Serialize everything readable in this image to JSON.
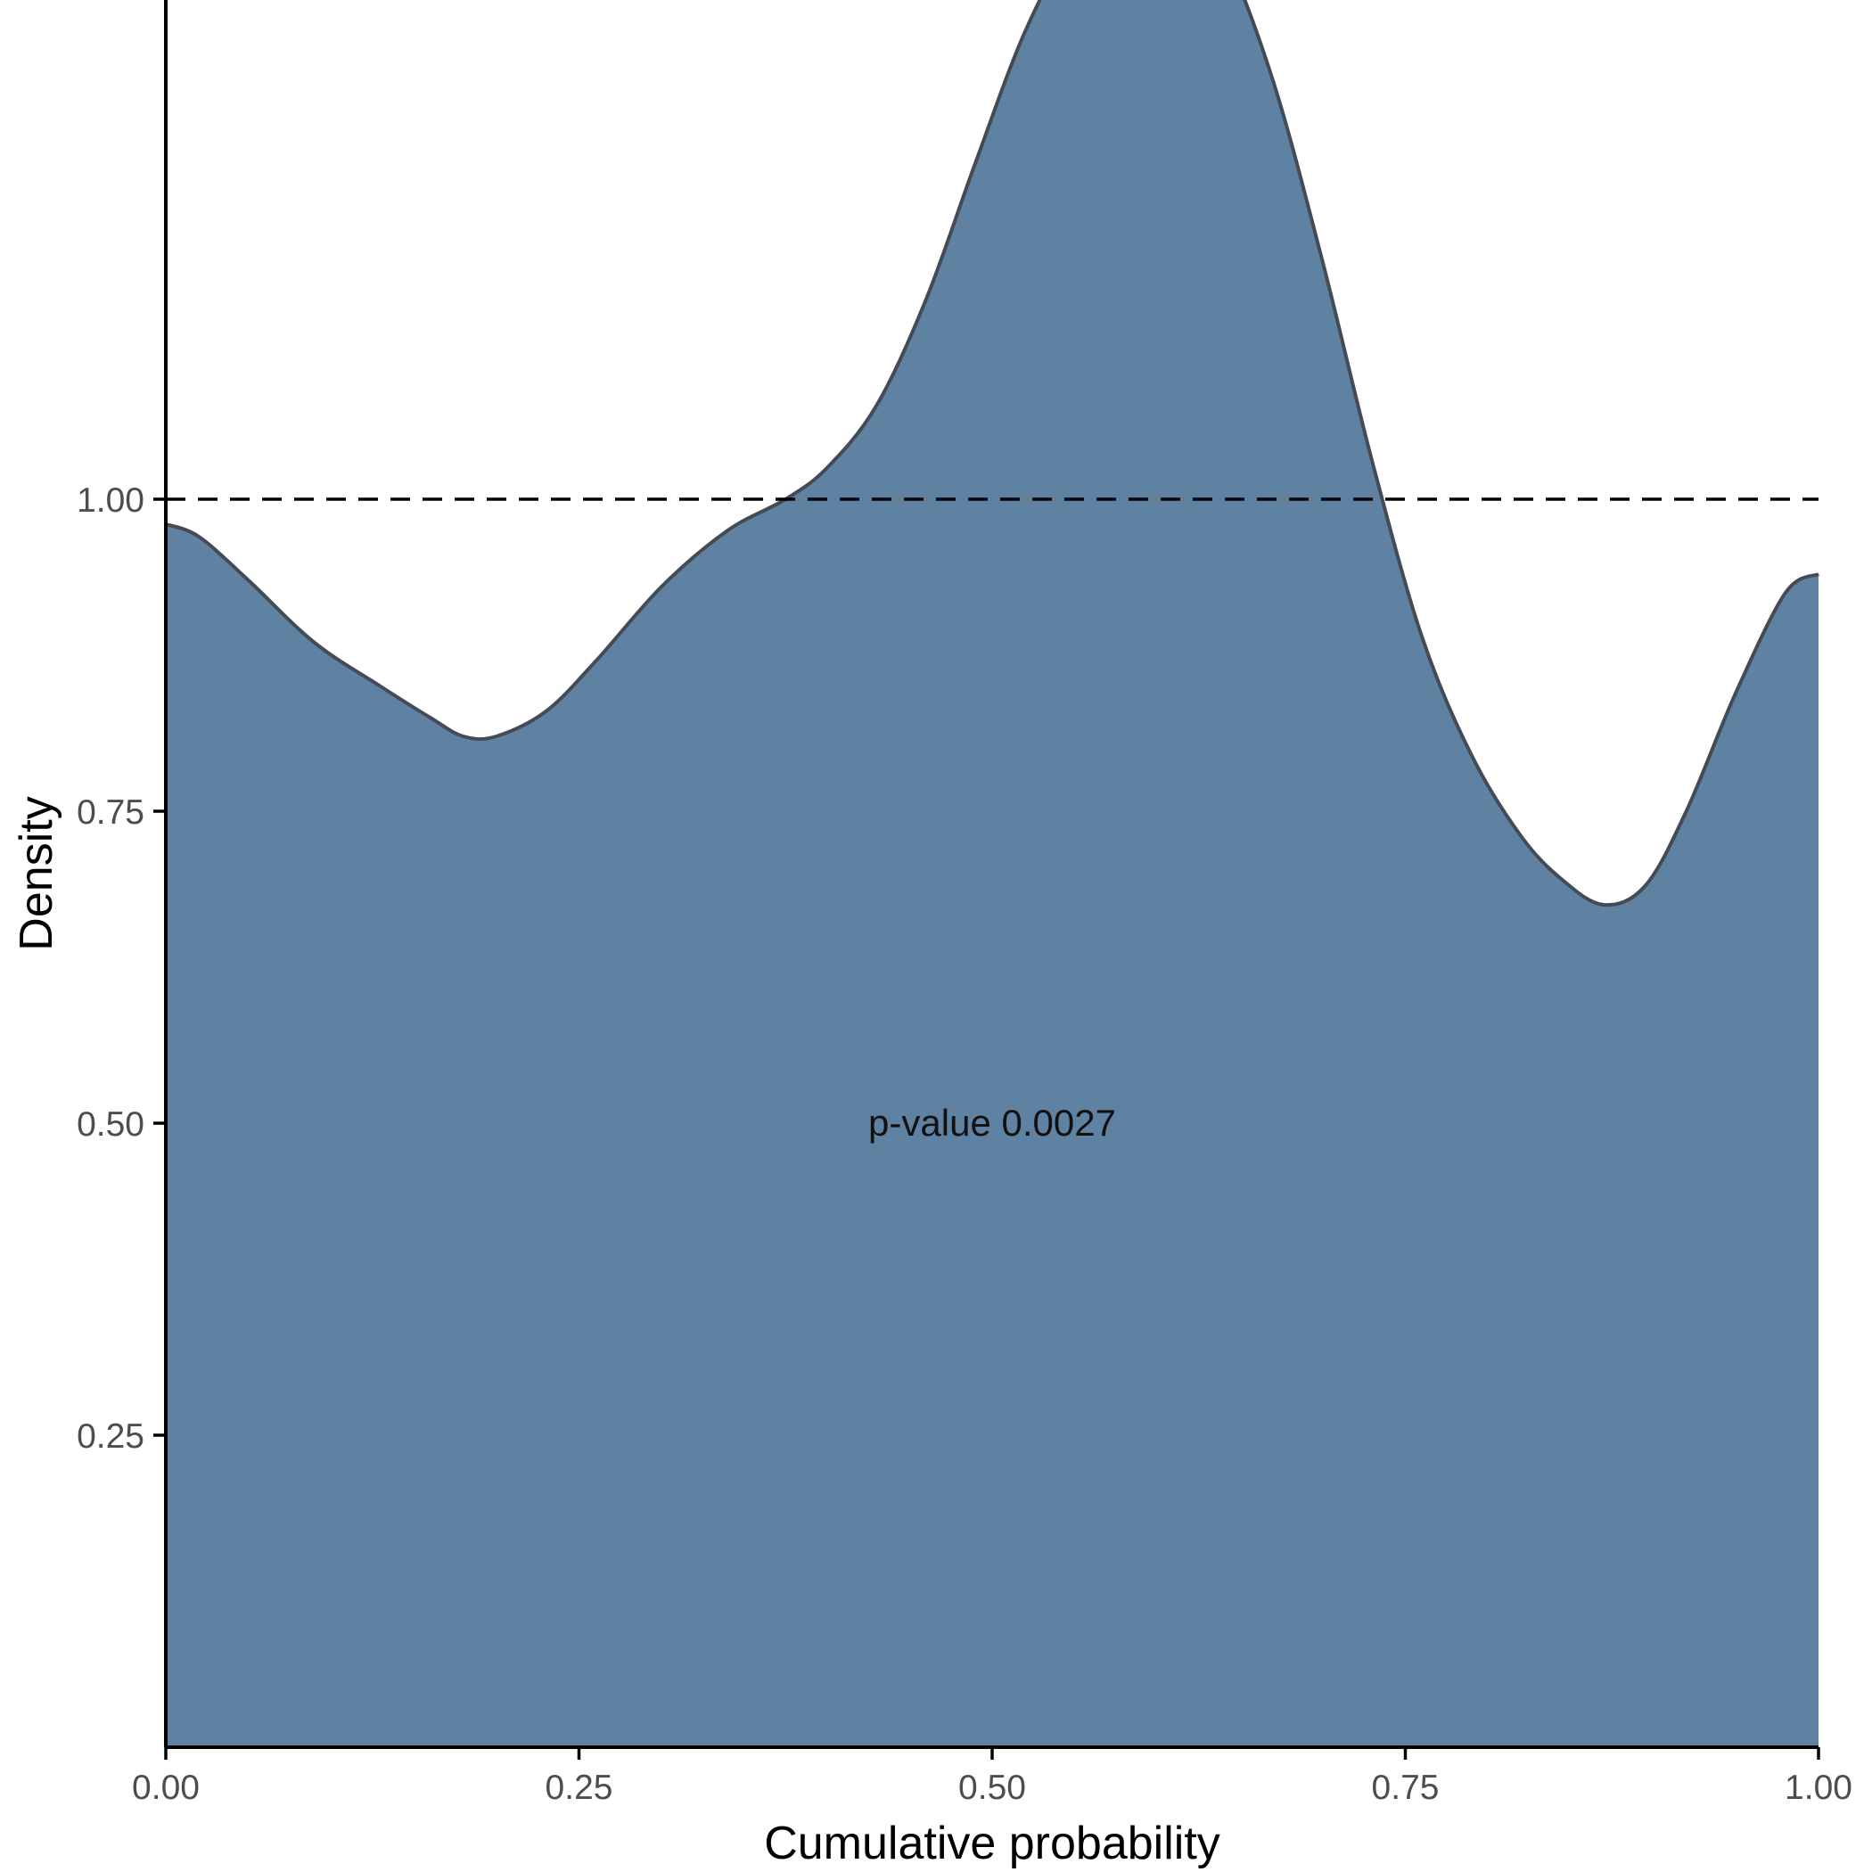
{
  "chart_data": {
    "type": "area",
    "title": "",
    "xlabel": "Cumulative probability",
    "ylabel": "Density",
    "xlim": [
      0,
      1
    ],
    "ylim": [
      0,
      1.4
    ],
    "x_ticks": [
      "0.00",
      "0.25",
      "0.50",
      "0.75",
      "1.00"
    ],
    "y_ticks": [
      "0.25",
      "0.50",
      "0.75",
      "1.00"
    ],
    "grid": false,
    "legend": "none",
    "reference_line": {
      "y": 1.0,
      "style": "dashed"
    },
    "annotation": {
      "text": "p-value 0.0027",
      "x": 0.5,
      "y": 0.5
    },
    "colors": {
      "fill": "#5f82a3",
      "stroke": "#454b55",
      "axis": "#000000"
    },
    "series": [
      {
        "x": [
          0.0,
          0.02,
          0.05,
          0.09,
          0.13,
          0.16,
          0.18,
          0.2,
          0.23,
          0.26,
          0.3,
          0.34,
          0.375,
          0.4,
          0.43,
          0.46,
          0.49,
          0.52,
          0.55,
          0.575,
          0.595,
          0.615,
          0.64,
          0.67,
          0.7,
          0.73,
          0.76,
          0.79,
          0.82,
          0.845,
          0.87,
          0.895,
          0.92,
          0.95,
          0.98,
          1.0
        ],
        "y": [
          0.98,
          0.97,
          0.935,
          0.885,
          0.85,
          0.825,
          0.81,
          0.81,
          0.83,
          0.87,
          0.93,
          0.975,
          1.0,
          1.025,
          1.075,
          1.16,
          1.27,
          1.375,
          1.45,
          1.49,
          1.5,
          1.49,
          1.44,
          1.335,
          1.19,
          1.03,
          0.89,
          0.795,
          0.73,
          0.695,
          0.675,
          0.69,
          0.75,
          0.845,
          0.925,
          0.94
        ]
      }
    ]
  }
}
